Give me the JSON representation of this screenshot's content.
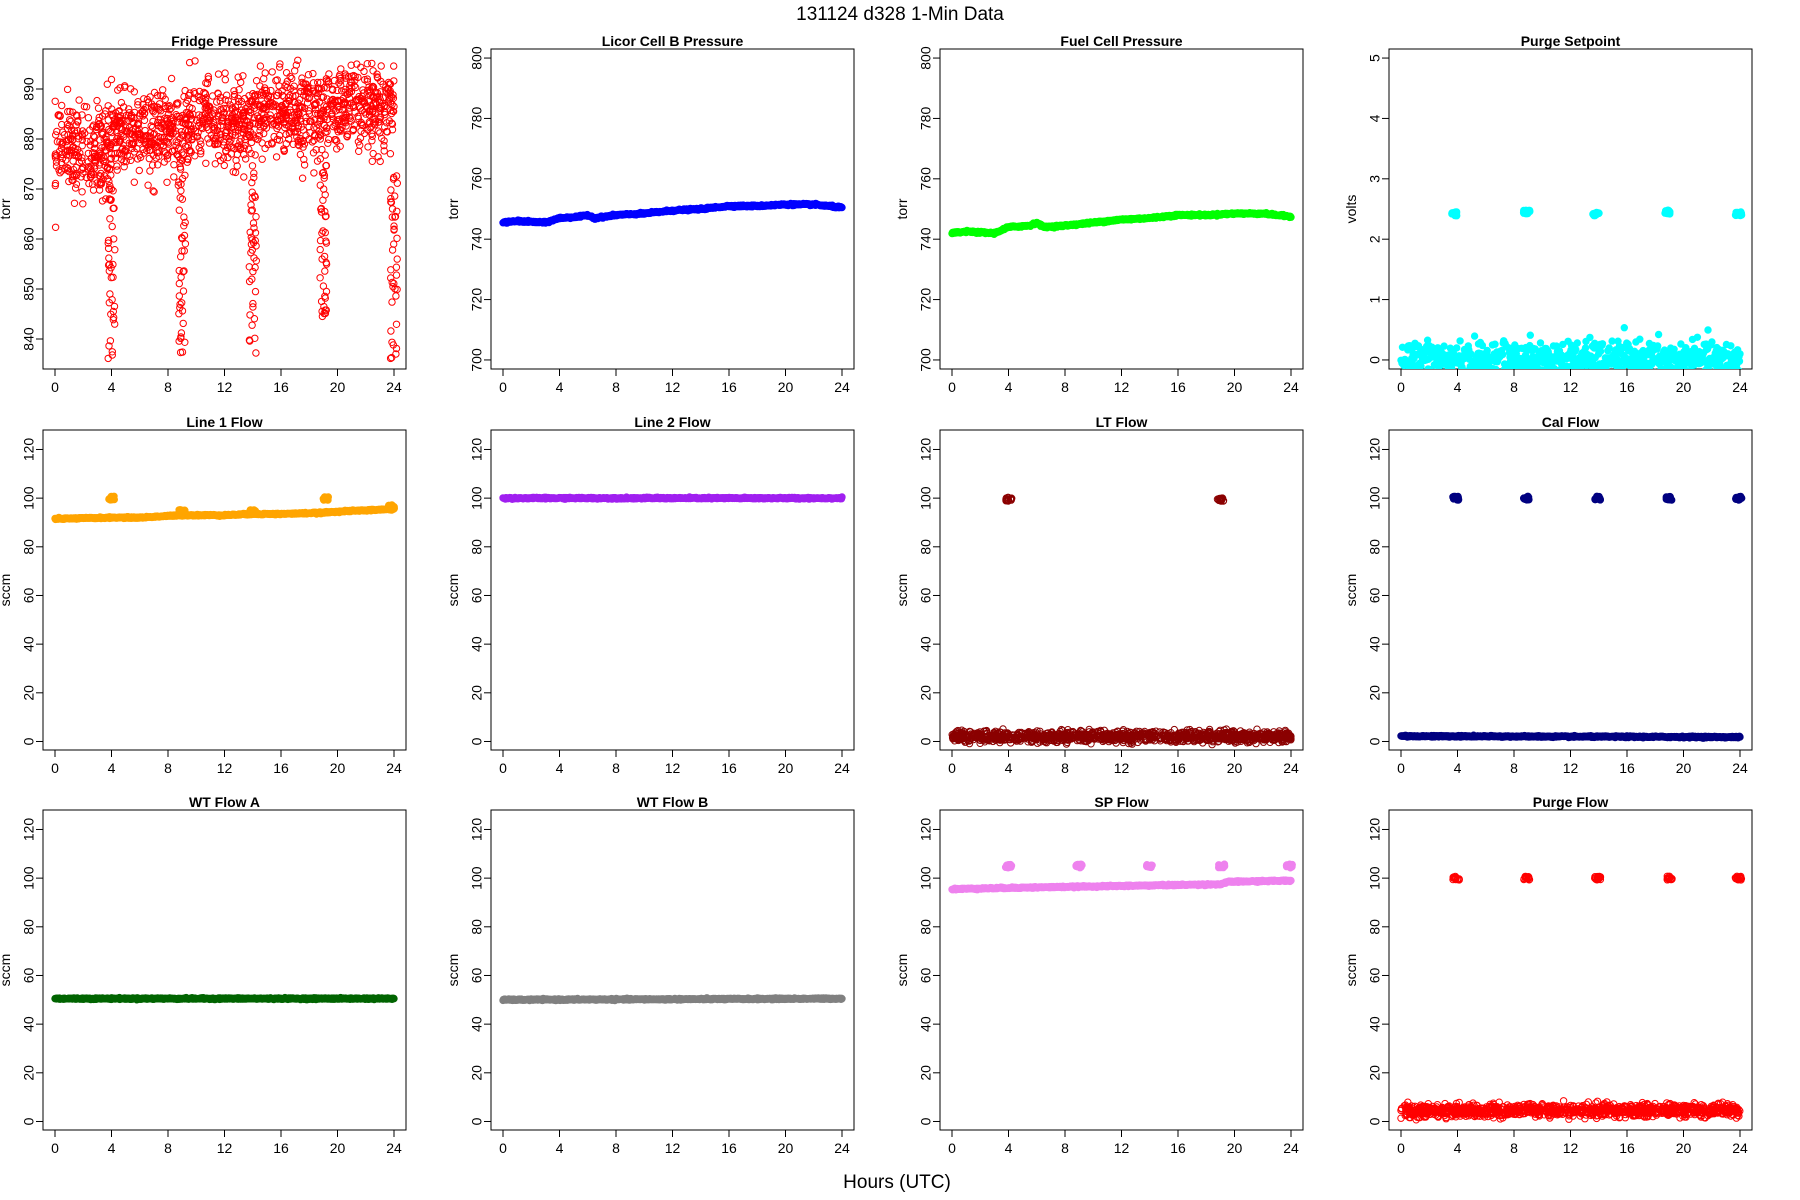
{
  "figure": {
    "title": "131124   d328   1-Min Data",
    "xlabel": "Hours (UTC)"
  },
  "chart_data": [
    {
      "type": "scatter",
      "title": "Fridge Pressure",
      "ylabel": "torr",
      "color": "#ff0000",
      "marker": "open",
      "xlim": [
        0,
        24
      ],
      "xticks": [
        0,
        4,
        8,
        12,
        16,
        20,
        24
      ],
      "ylim": [
        834,
        898
      ],
      "yticks": [
        840,
        850,
        860,
        870,
        880,
        890
      ],
      "base_segments": [
        [
          0,
          4,
          878,
          4.5
        ],
        [
          4,
          9,
          881,
          4
        ],
        [
          9,
          14,
          883,
          4
        ],
        [
          14,
          19,
          885,
          4.5
        ],
        [
          19,
          24,
          886,
          4
        ]
      ],
      "dips": [
        [
          4.0,
          836
        ],
        [
          9.0,
          836
        ],
        [
          14.0,
          837
        ],
        [
          19.0,
          843
        ],
        [
          24.0,
          836
        ]
      ]
    },
    {
      "type": "scatter",
      "title": "Licor Cell B Pressure",
      "ylabel": "torr",
      "color": "#0000ff",
      "marker": "filled",
      "xlim": [
        0,
        24
      ],
      "xticks": [
        0,
        4,
        8,
        12,
        16,
        20,
        24
      ],
      "ylim": [
        697,
        803
      ],
      "yticks": [
        700,
        720,
        740,
        760,
        780,
        800
      ],
      "line": [
        [
          0,
          745.5
        ],
        [
          1,
          746
        ],
        [
          3,
          745.5
        ],
        [
          4,
          747
        ],
        [
          5.5,
          747.5
        ],
        [
          6,
          748
        ],
        [
          6.5,
          747
        ],
        [
          8,
          748
        ],
        [
          10,
          748.5
        ],
        [
          12,
          749.5
        ],
        [
          14,
          750
        ],
        [
          16,
          751
        ],
        [
          18,
          751
        ],
        [
          20,
          751.5
        ],
        [
          22,
          751.5
        ],
        [
          24,
          750.5
        ]
      ]
    },
    {
      "type": "scatter",
      "title": "Fuel Cell Pressure",
      "ylabel": "torr",
      "color": "#00ff00",
      "marker": "filled",
      "xlim": [
        0,
        24
      ],
      "xticks": [
        0,
        4,
        8,
        12,
        16,
        20,
        24
      ],
      "ylim": [
        697,
        803
      ],
      "yticks": [
        700,
        720,
        740,
        760,
        780,
        800
      ],
      "line": [
        [
          0,
          742
        ],
        [
          1,
          742.5
        ],
        [
          3,
          742
        ],
        [
          4,
          744
        ],
        [
          5.5,
          744.5
        ],
        [
          6,
          745.5
        ],
        [
          6.5,
          744
        ],
        [
          8,
          744.5
        ],
        [
          10,
          745.5
        ],
        [
          12,
          746.5
        ],
        [
          14,
          747
        ],
        [
          16,
          748
        ],
        [
          18,
          748
        ],
        [
          20,
          748.5
        ],
        [
          22,
          748.5
        ],
        [
          24,
          747.5
        ]
      ]
    },
    {
      "type": "scatter",
      "title": "Purge Setpoint",
      "ylabel": "volts",
      "color": "#00ffff",
      "marker": "filled",
      "xlim": [
        0,
        24
      ],
      "xticks": [
        0,
        4,
        8,
        12,
        16,
        20,
        24
      ],
      "ylim": [
        -0.15,
        5.15
      ],
      "yticks": [
        0,
        1,
        2,
        3,
        4,
        5
      ],
      "line": [
        [
          0,
          0
        ],
        [
          24,
          0
        ]
      ],
      "clusters": [
        [
          3.8,
          2.42
        ],
        [
          8.9,
          2.45
        ],
        [
          13.8,
          2.42
        ],
        [
          18.9,
          2.45
        ],
        [
          23.9,
          2.42
        ]
      ]
    },
    {
      "type": "scatter",
      "title": "Line 1 Flow",
      "ylabel": "sccm",
      "color": "#ffa500",
      "marker": "filled",
      "xlim": [
        0,
        24
      ],
      "xticks": [
        0,
        4,
        8,
        12,
        16,
        20,
        24
      ],
      "ylim": [
        -3.5,
        128
      ],
      "yticks": [
        0,
        20,
        40,
        60,
        80,
        100,
        120
      ],
      "line": [
        [
          0,
          91.5
        ],
        [
          4,
          92
        ],
        [
          6,
          92
        ],
        [
          9,
          93
        ],
        [
          12,
          93
        ],
        [
          14,
          93.5
        ],
        [
          16,
          93.5
        ],
        [
          19,
          94
        ],
        [
          20,
          94.5
        ],
        [
          24,
          95.5
        ]
      ],
      "clusters": [
        [
          4.0,
          100
        ],
        [
          9.0,
          94.5
        ],
        [
          14.0,
          94.5
        ],
        [
          19.2,
          100
        ],
        [
          23.8,
          96.5
        ]
      ]
    },
    {
      "type": "scatter",
      "title": "Line 2 Flow",
      "ylabel": "sccm",
      "color": "#a020f0",
      "marker": "filled",
      "xlim": [
        0,
        24
      ],
      "xticks": [
        0,
        4,
        8,
        12,
        16,
        20,
        24
      ],
      "ylim": [
        -3.5,
        128
      ],
      "yticks": [
        0,
        20,
        40,
        60,
        80,
        100,
        120
      ],
      "line": [
        [
          0,
          100
        ],
        [
          24,
          100
        ]
      ]
    },
    {
      "type": "scatter",
      "title": "LT Flow",
      "ylabel": "sccm",
      "color": "#8b0000",
      "marker": "open",
      "xlim": [
        0,
        24
      ],
      "xticks": [
        0,
        4,
        8,
        12,
        16,
        20,
        24
      ],
      "ylim": [
        -3.5,
        128
      ],
      "yticks": [
        0,
        20,
        40,
        60,
        80,
        100,
        120
      ],
      "band": [
        0,
        24,
        2,
        1.6
      ],
      "clusters": [
        [
          4.0,
          99.5
        ],
        [
          19.0,
          99.5
        ]
      ]
    },
    {
      "type": "scatter",
      "title": "Cal Flow",
      "ylabel": "sccm",
      "color": "#000080",
      "marker": "filled",
      "xlim": [
        0,
        24
      ],
      "xticks": [
        0,
        4,
        8,
        12,
        16,
        20,
        24
      ],
      "ylim": [
        -3.5,
        128
      ],
      "yticks": [
        0,
        20,
        40,
        60,
        80,
        100,
        120
      ],
      "line": [
        [
          0,
          2.2
        ],
        [
          24,
          1.8
        ]
      ],
      "clusters": [
        [
          3.9,
          100
        ],
        [
          8.9,
          100
        ],
        [
          13.9,
          100
        ],
        [
          19.0,
          100
        ],
        [
          23.9,
          100
        ]
      ]
    },
    {
      "type": "scatter",
      "title": "WT Flow A",
      "ylabel": "sccm",
      "color": "#006400",
      "marker": "filled",
      "xlim": [
        0,
        24
      ],
      "xticks": [
        0,
        4,
        8,
        12,
        16,
        20,
        24
      ],
      "ylim": [
        -3.5,
        128
      ],
      "yticks": [
        0,
        20,
        40,
        60,
        80,
        100,
        120
      ],
      "line": [
        [
          0,
          50.5
        ],
        [
          24,
          50.5
        ]
      ]
    },
    {
      "type": "scatter",
      "title": "WT Flow B",
      "ylabel": "sccm",
      "color": "#808080",
      "marker": "filled",
      "xlim": [
        0,
        24
      ],
      "xticks": [
        0,
        4,
        8,
        12,
        16,
        20,
        24
      ],
      "ylim": [
        -3.5,
        128
      ],
      "yticks": [
        0,
        20,
        40,
        60,
        80,
        100,
        120
      ],
      "line": [
        [
          0,
          50
        ],
        [
          24,
          50.5
        ]
      ]
    },
    {
      "type": "scatter",
      "title": "SP Flow",
      "ylabel": "sccm",
      "color": "#ee82ee",
      "marker": "filled",
      "xlim": [
        0,
        24
      ],
      "xticks": [
        0,
        4,
        8,
        12,
        16,
        20,
        24
      ],
      "ylim": [
        -3.5,
        128
      ],
      "yticks": [
        0,
        20,
        40,
        60,
        80,
        100,
        120
      ],
      "line": [
        [
          0,
          95.5
        ],
        [
          4,
          96
        ],
        [
          9,
          96.5
        ],
        [
          14,
          97
        ],
        [
          19,
          97.5
        ],
        [
          19.6,
          98.5
        ],
        [
          24,
          99
        ]
      ],
      "clusters": [
        [
          4.0,
          105
        ],
        [
          9.0,
          105
        ],
        [
          14.0,
          105
        ],
        [
          19.1,
          105
        ],
        [
          23.9,
          105
        ]
      ]
    },
    {
      "type": "scatter",
      "title": "Purge Flow",
      "ylabel": "sccm",
      "color": "#ff0000",
      "marker": "open",
      "xlim": [
        0,
        24
      ],
      "xticks": [
        0,
        4,
        8,
        12,
        16,
        20,
        24
      ],
      "ylim": [
        -3.5,
        128
      ],
      "yticks": [
        0,
        20,
        40,
        60,
        80,
        100,
        120
      ],
      "band": [
        0,
        24,
        4.5,
        1.8
      ],
      "clusters": [
        [
          3.9,
          100
        ],
        [
          8.9,
          100
        ],
        [
          13.9,
          100
        ],
        [
          19.0,
          100
        ],
        [
          23.9,
          100
        ]
      ]
    }
  ]
}
